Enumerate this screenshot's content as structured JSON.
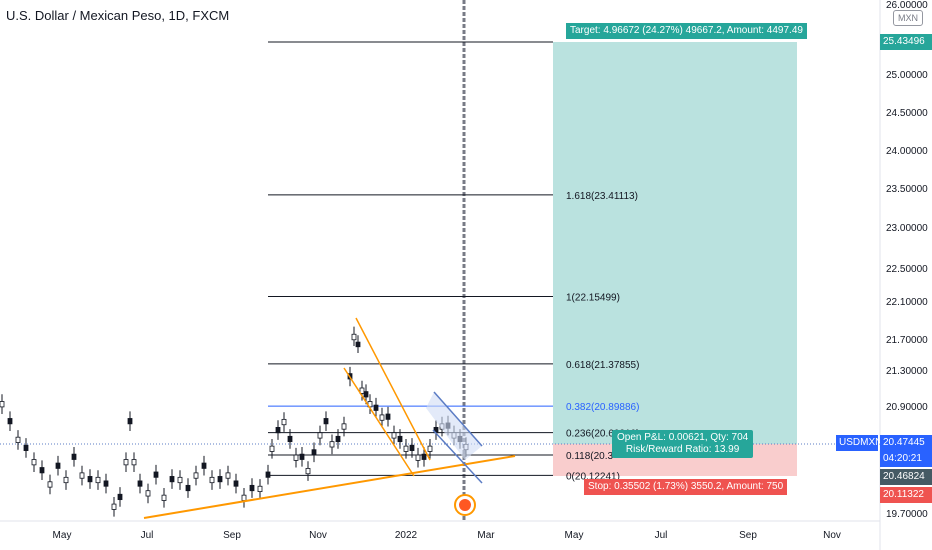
{
  "header": {
    "title": "U.S. Dollar / Mexican Peso, 1D, FXCM",
    "currency": "MXN"
  },
  "chart_data": {
    "type": "candlestick",
    "symbol": "USDMXN",
    "x_ticks": [
      "May",
      "Jul",
      "Sep",
      "Nov",
      "2022",
      "Mar",
      "May",
      "Jul",
      "Sep",
      "Nov"
    ],
    "y_ticks": [
      "26.00000",
      "25.00000",
      "24.50000",
      "24.00000",
      "23.50000",
      "23.00000",
      "22.50000",
      "22.10000",
      "21.70000",
      "21.30000",
      "20.90000",
      "19.70000"
    ],
    "ylim": [
      19.62,
      26.0
    ],
    "fib_levels": [
      {
        "label": "1.618(23.41113)",
        "value": 23.41113
      },
      {
        "label": "1(22.15499)",
        "value": 22.15499
      },
      {
        "label": "0.618(21.37855)",
        "value": 21.37855
      },
      {
        "label": "0.382(20.89886)",
        "value": 20.89886
      },
      {
        "label": "0.236(20.60210)",
        "value": 20.6021
      },
      {
        "label": "0.118(20.3",
        "value": 20.35
      },
      {
        "label": "0(20.12241)",
        "value": 20.12241
      }
    ],
    "target_line": 25.43496,
    "position": {
      "target_label": "Target: 4.96672 (24.27%) 49667.2, Amount: 4497.49",
      "stop_label": "Stop: 0.35502 (1.73%) 3550.2, Amount: 750",
      "open_pl_line1": "Open P&L: 0.00621, Qty: 704",
      "open_pl_line2": "Risk/Reward Ratio: 13.99"
    },
    "price_tags": {
      "target": "25.43496",
      "symbol": "USDMXN",
      "current": "20.47445",
      "countdown": "04:20:21",
      "entry": "20.46824",
      "stop": "20.11322"
    },
    "colors": {
      "target_zone": "#b2dfdb",
      "stop_zone": "#f8c8c8",
      "target_tag": "#26a69a",
      "stop_tag": "#ef5350",
      "trendline": "#ff9800",
      "channel": "#5b7cc4",
      "fib_382": "#2962ff",
      "candle": "#131722"
    }
  }
}
